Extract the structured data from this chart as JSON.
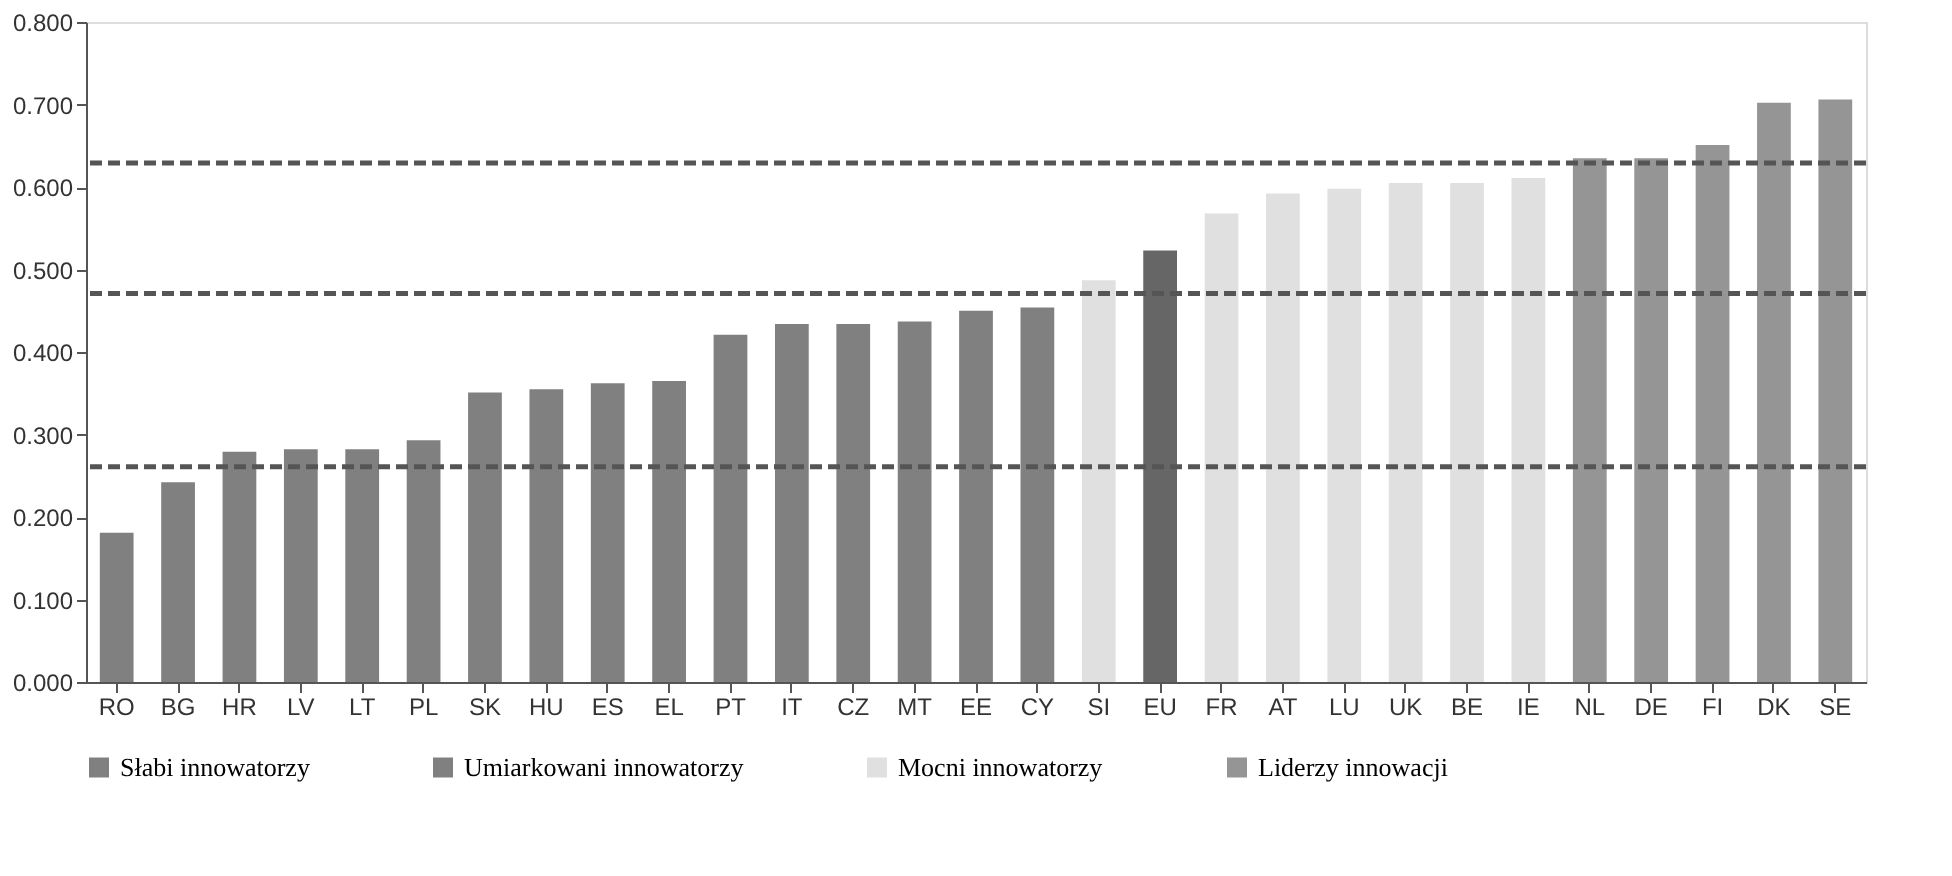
{
  "chart_data": {
    "type": "bar",
    "categories": [
      "RO",
      "BG",
      "HR",
      "LV",
      "LT",
      "PL",
      "SK",
      "HU",
      "ES",
      "EL",
      "PT",
      "IT",
      "CZ",
      "MT",
      "EE",
      "CY",
      "SI",
      "EU",
      "FR",
      "AT",
      "LU",
      "UK",
      "BE",
      "IE",
      "NL",
      "DE",
      "FI",
      "DK",
      "SE"
    ],
    "series": [
      {
        "name": "Słabi innowatorzy",
        "color": "#808080",
        "values": [
          0.181,
          0.242,
          null,
          null,
          null,
          null,
          null,
          null,
          null,
          null,
          null,
          null,
          null,
          null,
          null,
          null,
          null,
          null,
          null,
          null,
          null,
          null,
          null,
          null,
          null,
          null,
          null,
          null,
          null
        ]
      },
      {
        "name": "Umiarkowani innowatorzy",
        "color": "#808080",
        "values": [
          null,
          null,
          0.279,
          0.282,
          0.282,
          0.293,
          0.351,
          0.355,
          0.362,
          0.365,
          0.421,
          0.434,
          0.434,
          0.437,
          0.45,
          0.454,
          null,
          null,
          null,
          null,
          null,
          null,
          null,
          null,
          null,
          null,
          null,
          null,
          null
        ]
      },
      {
        "color": "#666666",
        "values": [
          null,
          null,
          null,
          null,
          null,
          null,
          null,
          null,
          null,
          null,
          null,
          null,
          null,
          null,
          null,
          null,
          null,
          0.523,
          null,
          null,
          null,
          null,
          null,
          null,
          null,
          null,
          null,
          null,
          null
        ]
      },
      {
        "name": "Mocni innowatorzy",
        "color": "#e0e0e0",
        "values": [
          null,
          null,
          null,
          null,
          null,
          null,
          null,
          null,
          null,
          null,
          null,
          null,
          null,
          null,
          null,
          null,
          0.487,
          null,
          0.568,
          0.592,
          0.598,
          0.605,
          0.605,
          0.611,
          null,
          null,
          null,
          null,
          null
        ]
      },
      {
        "name": "Liderzy innowacji",
        "color": "#959595",
        "values": [
          null,
          null,
          null,
          null,
          null,
          null,
          null,
          null,
          null,
          null,
          null,
          null,
          null,
          null,
          null,
          null,
          null,
          null,
          null,
          null,
          null,
          null,
          null,
          null,
          0.635,
          0.635,
          0.651,
          0.702,
          0.706
        ]
      }
    ],
    "ylim": [
      0,
      0.8
    ],
    "yticks": [
      {
        "value": 0,
        "label": "0.000"
      },
      {
        "value": 0.1,
        "label": "0.100"
      },
      {
        "value": 0.2,
        "label": "0.200"
      },
      {
        "value": 0.3,
        "label": "0.300"
      },
      {
        "value": 0.4,
        "label": "0.400"
      },
      {
        "value": 0.5,
        "label": "0.500"
      },
      {
        "value": 0.6,
        "label": "0.600"
      },
      {
        "value": 0.7,
        "label": "0.700"
      },
      {
        "value": 0.8,
        "label": "0.800"
      }
    ],
    "ref_lines": [
      {
        "axis": "y",
        "value": 0.629,
        "color": "#555555",
        "line_style": "dashed"
      },
      {
        "axis": "y",
        "value": 0.471,
        "color": "#555555",
        "line_style": "dashed"
      },
      {
        "axis": "y",
        "value": 0.261,
        "color": "#555555",
        "line_style": "dashed"
      }
    ],
    "grid": false,
    "legend": "bottom"
  }
}
